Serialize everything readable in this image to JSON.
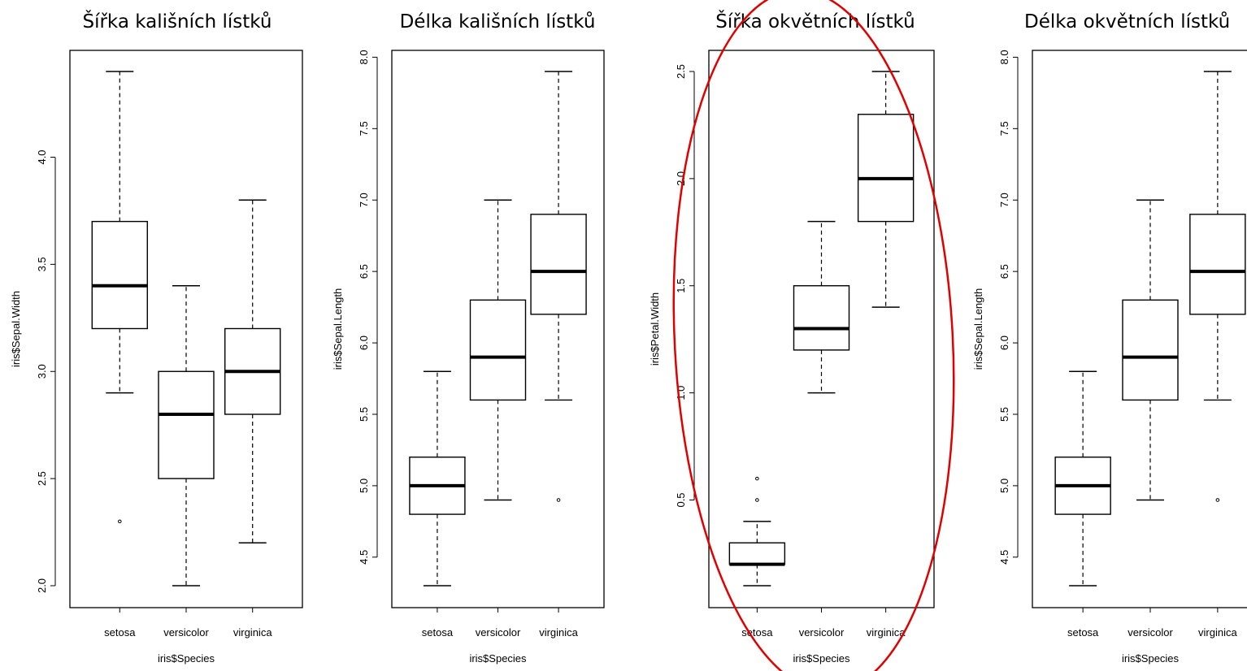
{
  "chart_data": [
    {
      "type": "box",
      "title": "Šířka kališních lístků",
      "xlabel": "iris$Species",
      "ylabel": "iris$Sepal.Width",
      "categories": [
        "setosa",
        "versicolor",
        "virginica"
      ],
      "yticks": [
        "2.0",
        "2.5",
        "3.0",
        "3.5",
        "4.0"
      ],
      "ylim": [
        2.0,
        4.4
      ],
      "boxes": [
        {
          "category": "setosa",
          "whisker_low": 2.9,
          "q1": 3.2,
          "median": 3.4,
          "q3": 3.7,
          "whisker_high": 4.4,
          "outliers": [
            2.3
          ]
        },
        {
          "category": "versicolor",
          "whisker_low": 2.0,
          "q1": 2.5,
          "median": 2.8,
          "q3": 3.0,
          "whisker_high": 3.4,
          "outliers": []
        },
        {
          "category": "virginica",
          "whisker_low": 2.2,
          "q1": 2.8,
          "median": 3.0,
          "q3": 3.2,
          "whisker_high": 3.8,
          "outliers": []
        }
      ]
    },
    {
      "type": "box",
      "title": "Délka kališních lístků",
      "xlabel": "iris$Species",
      "ylabel": "iris$Sepal.Length",
      "categories": [
        "setosa",
        "versicolor",
        "virginica"
      ],
      "yticks": [
        "4.5",
        "5.0",
        "5.5",
        "6.0",
        "6.5",
        "7.0",
        "7.5",
        "8.0"
      ],
      "ylim": [
        4.3,
        7.9
      ],
      "boxes": [
        {
          "category": "setosa",
          "whisker_low": 4.3,
          "q1": 4.8,
          "median": 5.0,
          "q3": 5.2,
          "whisker_high": 5.8,
          "outliers": []
        },
        {
          "category": "versicolor",
          "whisker_low": 4.9,
          "q1": 5.6,
          "median": 5.9,
          "q3": 6.3,
          "whisker_high": 7.0,
          "outliers": []
        },
        {
          "category": "virginica",
          "whisker_low": 5.6,
          "q1": 6.2,
          "median": 6.5,
          "q3": 6.9,
          "whisker_high": 7.9,
          "outliers": [
            4.9
          ]
        }
      ]
    },
    {
      "type": "box",
      "title": "Šířka okvětních lístků",
      "xlabel": "iris$Species",
      "ylabel": "iris$Petal.Width",
      "categories": [
        "setosa",
        "versicolor",
        "virginica"
      ],
      "yticks": [
        "0.5",
        "1.0",
        "1.5",
        "2.0",
        "2.5"
      ],
      "ylim": [
        0.1,
        2.5
      ],
      "highlight_color": "#e00000",
      "boxes": [
        {
          "category": "setosa",
          "whisker_low": 0.1,
          "q1": 0.2,
          "median": 0.2,
          "q3": 0.3,
          "whisker_high": 0.4,
          "outliers": [
            0.5,
            0.6
          ]
        },
        {
          "category": "versicolor",
          "whisker_low": 1.0,
          "q1": 1.2,
          "median": 1.3,
          "q3": 1.5,
          "whisker_high": 1.8,
          "outliers": []
        },
        {
          "category": "virginica",
          "whisker_low": 1.4,
          "q1": 1.8,
          "median": 2.0,
          "q3": 2.3,
          "whisker_high": 2.5,
          "outliers": []
        }
      ]
    },
    {
      "type": "box",
      "title": "Délka okvětních lístků",
      "xlabel": "iris$Species",
      "ylabel": "iris$Sepal.Length",
      "categories": [
        "setosa",
        "versicolor",
        "virginica"
      ],
      "yticks": [
        "4.5",
        "5.0",
        "5.5",
        "6.0",
        "6.5",
        "7.0",
        "7.5",
        "8.0"
      ],
      "ylim": [
        4.3,
        7.9
      ],
      "boxes": [
        {
          "category": "setosa",
          "whisker_low": 4.3,
          "q1": 4.8,
          "median": 5.0,
          "q3": 5.2,
          "whisker_high": 5.8,
          "outliers": []
        },
        {
          "category": "versicolor",
          "whisker_low": 4.9,
          "q1": 5.6,
          "median": 5.9,
          "q3": 6.3,
          "whisker_high": 7.0,
          "outliers": []
        },
        {
          "category": "virginica",
          "whisker_low": 5.6,
          "q1": 6.2,
          "median": 6.5,
          "q3": 6.9,
          "whisker_high": 7.9,
          "outliers": [
            4.9
          ]
        }
      ]
    }
  ]
}
